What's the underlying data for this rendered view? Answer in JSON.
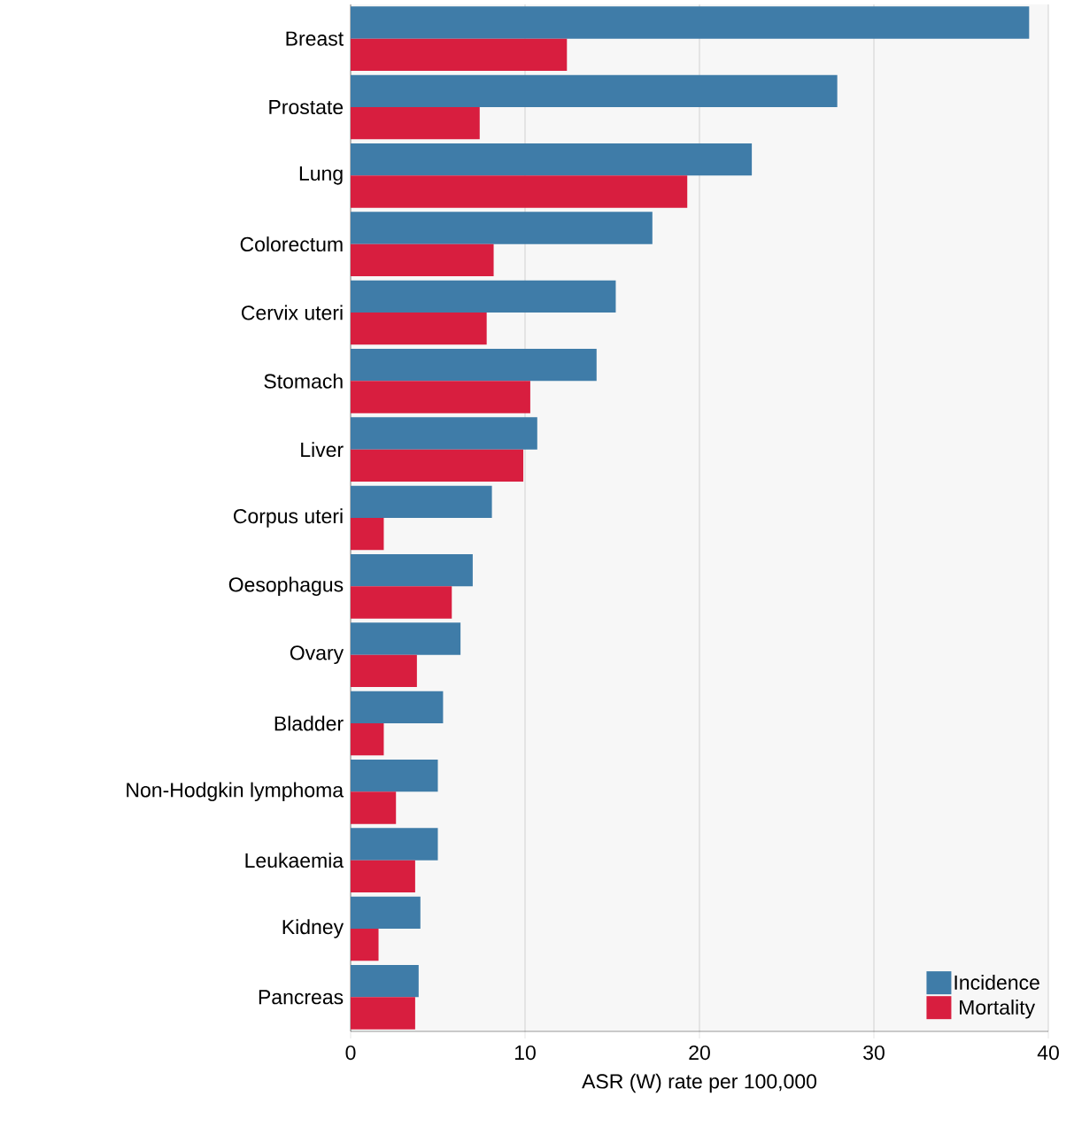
{
  "chart_data": {
    "type": "bar",
    "orientation": "horizontal",
    "categories": [
      "Breast",
      "Prostate",
      "Lung",
      "Colorectum",
      "Cervix uteri",
      "Stomach",
      "Liver",
      "Corpus uteri",
      "Oesophagus",
      "Ovary",
      "Bladder",
      "Non-Hodgkin lymphoma",
      "Leukaemia",
      "Kidney",
      "Pancreas"
    ],
    "series": [
      {
        "name": "Incidence",
        "color": "#3f7ca8",
        "values": [
          38.9,
          27.9,
          23.0,
          17.3,
          15.2,
          14.1,
          10.7,
          8.1,
          7.0,
          6.3,
          5.3,
          5.0,
          5.0,
          4.0,
          3.9
        ]
      },
      {
        "name": "Mortality",
        "color": "#d81e3f",
        "values": [
          12.4,
          7.4,
          19.3,
          8.2,
          7.8,
          10.3,
          9.9,
          1.9,
          5.8,
          3.8,
          1.9,
          2.6,
          3.7,
          1.6,
          3.7
        ]
      }
    ],
    "xlim": [
      0,
      40
    ],
    "xticks": [
      0,
      10,
      20,
      30,
      40
    ],
    "xlabel": "ASR (W) rate per 100,000",
    "grid": "x",
    "legend": "bottom right"
  }
}
